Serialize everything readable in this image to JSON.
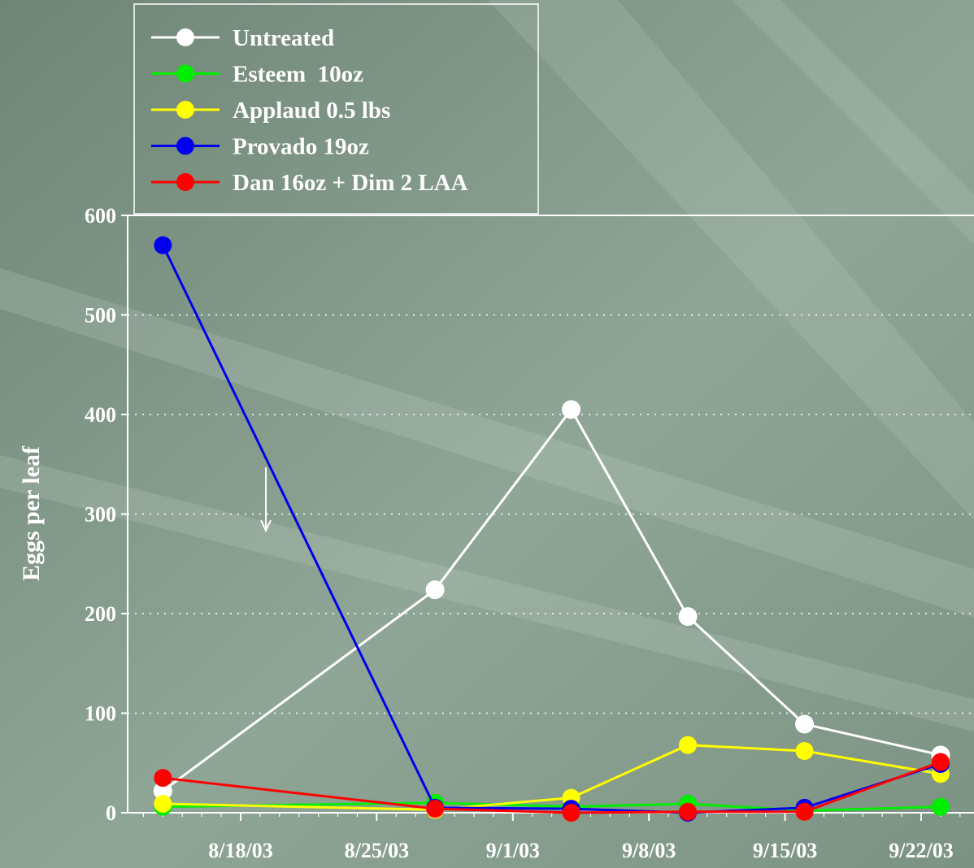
{
  "chart_data": {
    "type": "line",
    "ylabel": "Eggs per leaf",
    "xlabel": "",
    "ylim": [
      0,
      600
    ],
    "yticks": [
      0,
      100,
      200,
      300,
      400,
      500,
      600
    ],
    "xtick_labels": [
      "8/18/03",
      "8/25/03",
      "9/1/03",
      "9/8/03",
      "9/15/03",
      "9/22/03"
    ],
    "x_dates": [
      "8/14/03",
      "8/28/03",
      "9/4/03",
      "9/10/03",
      "9/16/03",
      "9/23/03"
    ],
    "grid": "horizontal dotted",
    "legend_position": "top-left",
    "series": [
      {
        "name": "Untreated",
        "color": "#ffffff",
        "values": [
          22,
          224,
          405,
          197,
          89,
          58
        ]
      },
      {
        "name": "Esteem  10oz",
        "color": "#00ee00",
        "values": [
          6,
          10,
          6,
          9,
          2,
          6
        ]
      },
      {
        "name": "Applaud 0.5 lbs",
        "color": "#ffff00",
        "values": [
          9,
          3,
          15,
          68,
          62,
          39
        ]
      },
      {
        "name": "Provado 19oz",
        "color": "#0000ee",
        "values": [
          570,
          5,
          4,
          0,
          5,
          49
        ]
      },
      {
        "name": "Dan 16oz + Dim 2 LAA",
        "color": "#ff0000",
        "values": [
          35,
          4,
          0,
          1,
          1,
          51
        ]
      }
    ]
  }
}
